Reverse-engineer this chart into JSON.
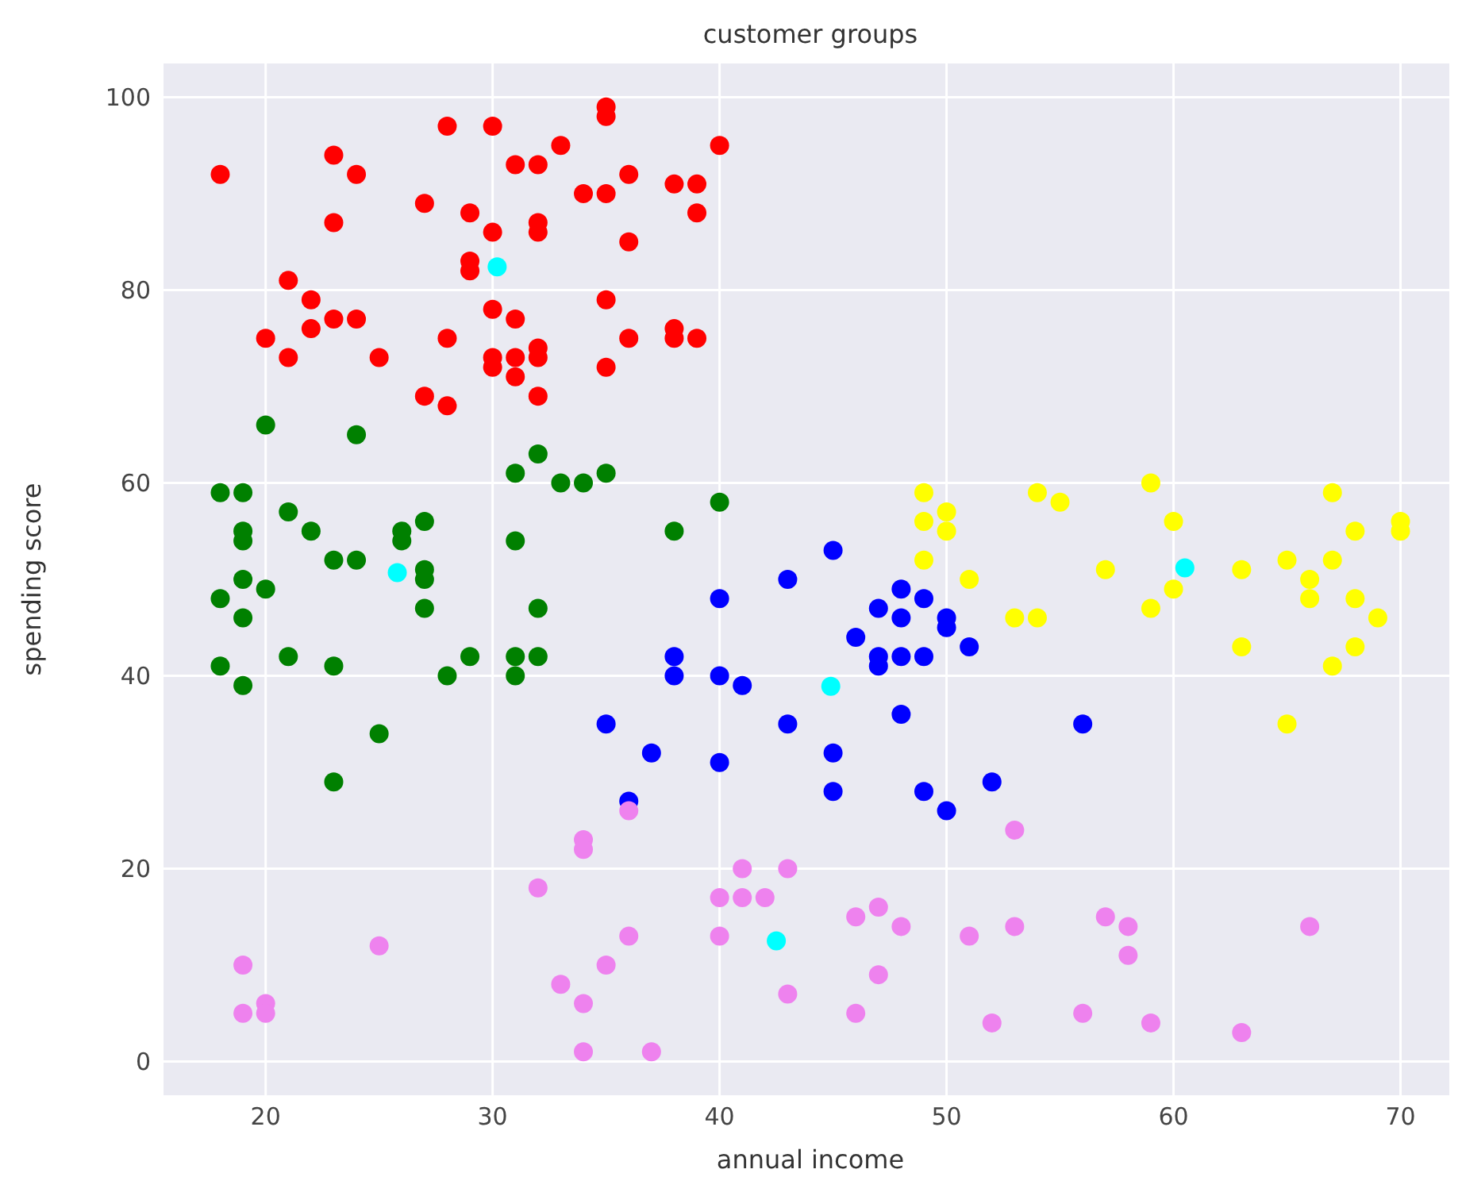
{
  "chart_data": {
    "type": "scatter",
    "title": "customer groups",
    "xlabel": "annual income",
    "ylabel": "spending score",
    "xlim": [
      15.5,
      72.5
    ],
    "ylim": [
      -3.5,
      103.5
    ],
    "xticks": [
      20,
      30,
      40,
      50,
      60,
      70
    ],
    "yticks": [
      0,
      20,
      40,
      60,
      80,
      100
    ],
    "grid": true,
    "marker": "circle",
    "series": [
      {
        "color": "#ff0000",
        "x": [
          18,
          23,
          24,
          23,
          28,
          30,
          31,
          32,
          33,
          35,
          35,
          36,
          34,
          35,
          38,
          39,
          40,
          39,
          36,
          27,
          29,
          30,
          32,
          32,
          29,
          29,
          21,
          22,
          35,
          30,
          31,
          23,
          24,
          22,
          20,
          28,
          36,
          38,
          38,
          39,
          21,
          25,
          30,
          30,
          31,
          32,
          32,
          31,
          35,
          27,
          28,
          32
        ],
        "values": [
          92,
          94,
          92,
          87,
          97,
          97,
          93,
          93,
          95,
          99,
          98,
          92,
          90,
          90,
          91,
          91,
          95,
          88,
          85,
          89,
          88,
          86,
          87,
          86,
          83,
          82,
          81,
          79,
          79,
          78,
          77,
          77,
          77,
          76,
          75,
          75,
          75,
          76,
          75,
          75,
          73,
          73,
          73,
          72,
          73,
          74,
          73,
          71,
          72,
          69,
          68,
          69
        ]
      },
      {
        "color": "#008000",
        "x": [
          20,
          24,
          32,
          31,
          33,
          34,
          35,
          18,
          19,
          40,
          21,
          22,
          19,
          19,
          26,
          26,
          27,
          38,
          31,
          23,
          24,
          27,
          27,
          19,
          20,
          18,
          19,
          27,
          32,
          18,
          21,
          23,
          29,
          28,
          31,
          32,
          31,
          19,
          25,
          23
        ],
        "values": [
          66,
          65,
          63,
          61,
          60,
          60,
          61,
          59,
          59,
          58,
          57,
          55,
          55,
          54,
          55,
          54,
          56,
          55,
          54,
          52,
          52,
          51,
          50,
          50,
          49,
          48,
          46,
          47,
          47,
          41,
          42,
          41,
          42,
          40,
          42,
          42,
          40,
          39,
          34,
          29
        ]
      },
      {
        "color": "#0000ff",
        "x": [
          45,
          43,
          40,
          48,
          49,
          47,
          48,
          50,
          50,
          46,
          51,
          47,
          47,
          48,
          49,
          38,
          38,
          40,
          41,
          48,
          56,
          35,
          43,
          37,
          40,
          45,
          45,
          49,
          50,
          52,
          36
        ],
        "values": [
          53,
          50,
          48,
          49,
          48,
          47,
          46,
          46,
          45,
          44,
          43,
          42,
          41,
          42,
          42,
          42,
          40,
          40,
          39,
          36,
          35,
          35,
          35,
          32,
          31,
          32,
          28,
          28,
          26,
          29,
          27
        ]
      },
      {
        "color": "#ffff00",
        "x": [
          49,
          54,
          55,
          59,
          67,
          49,
          50,
          50,
          60,
          68,
          70,
          70,
          49,
          51,
          57,
          63,
          65,
          67,
          66,
          66,
          60,
          59,
          68,
          69,
          53,
          54,
          63,
          68,
          67,
          65
        ],
        "values": [
          59,
          59,
          58,
          60,
          59,
          56,
          57,
          55,
          56,
          55,
          56,
          55,
          52,
          50,
          51,
          51,
          52,
          52,
          50,
          48,
          49,
          47,
          48,
          46,
          46,
          46,
          43,
          43,
          41,
          35
        ]
      },
      {
        "color": "#ee82ee",
        "x": [
          53,
          34,
          34,
          36,
          41,
          43,
          32,
          40,
          41,
          42,
          46,
          47,
          48,
          51,
          53,
          57,
          58,
          58,
          66,
          25,
          36,
          40,
          19,
          35,
          47,
          33,
          43,
          34,
          46,
          19,
          20,
          20,
          52,
          56,
          59,
          63,
          34,
          37
        ],
        "values": [
          24,
          23,
          22,
          26,
          20,
          20,
          18,
          17,
          17,
          17,
          15,
          16,
          14,
          13,
          14,
          15,
          14,
          11,
          14,
          12,
          13,
          13,
          10,
          10,
          9,
          8,
          7,
          6,
          5,
          5,
          6,
          5,
          4,
          5,
          4,
          3,
          1,
          1
        ]
      },
      {
        "color": "#00ffff",
        "x": [
          30.2,
          25.8,
          44.9,
          60.5,
          42.5
        ],
        "values": [
          82.4,
          50.7,
          38.9,
          51.2,
          12.5
        ]
      }
    ]
  }
}
